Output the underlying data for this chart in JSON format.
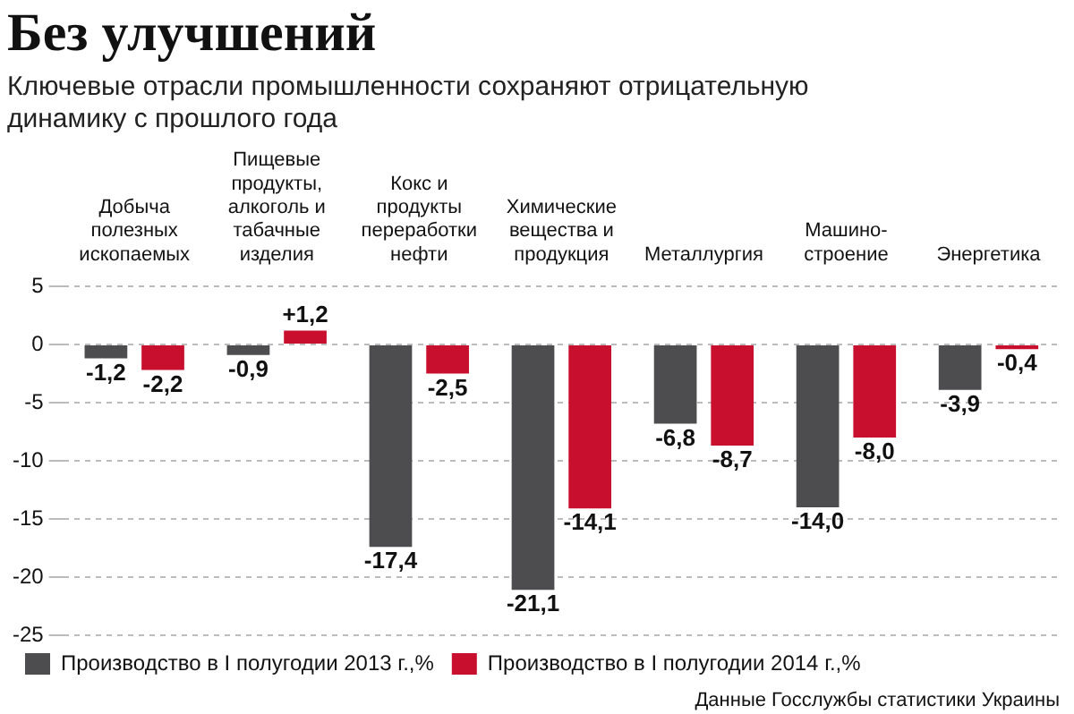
{
  "chart_data": {
    "type": "bar",
    "title": "Без улучшений",
    "subtitle": "Ключевые отрасли промышленности сохраняют отрицательную динамику с прошлого года",
    "categories": [
      "Добыча полезных ископаемых",
      "Пищевые продукты, алкоголь и табачные изделия",
      "Кокс и продукты переработки нефти",
      "Химические вещества и продукция",
      "Металлургия",
      "Машино-строение",
      "Энергетика"
    ],
    "series": [
      {
        "name": "Производство в I полугодии 2013 г.,%",
        "color": "#4d4d4f",
        "values": [
          -1.2,
          -0.9,
          -17.4,
          -21.1,
          -6.8,
          -14.0,
          -3.9
        ],
        "value_labels": [
          "-1,2",
          "-0,9",
          "-17,4",
          "-21,1",
          "-6,8",
          "-14,0",
          "-3,9"
        ]
      },
      {
        "name": "Производство в I полугодии 2014 г.,%",
        "color": "#c8102e",
        "values": [
          -2.2,
          1.2,
          -2.5,
          -14.1,
          -8.7,
          -8.0,
          -0.4
        ],
        "value_labels": [
          "-2,2",
          "+1,2",
          "-2,5",
          "-14,1",
          "-8,7",
          "-8,0",
          "-0,4"
        ]
      }
    ],
    "ylim": [
      -25,
      5
    ],
    "yticks": [
      5,
      0,
      -5,
      -10,
      -15,
      -20,
      -25
    ],
    "grid": "y",
    "legend": "bottom",
    "annotations": [
      "Данные Госслужбы статистики Украины"
    ]
  }
}
